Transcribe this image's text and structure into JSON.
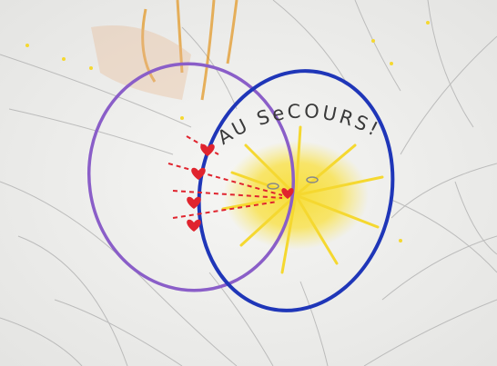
{
  "image": {
    "caption": "AU SeCOURS!"
  }
}
